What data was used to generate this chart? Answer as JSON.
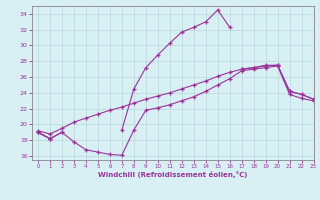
{
  "x": [
    0,
    1,
    2,
    3,
    4,
    5,
    6,
    7,
    8,
    9,
    10,
    11,
    12,
    13,
    14,
    15,
    16,
    17,
    18,
    19,
    20,
    21,
    22,
    23
  ],
  "line_peak": [
    19.0,
    18.2,
    19.0,
    null,
    null,
    null,
    null,
    19.3,
    24.5,
    27.2,
    28.8,
    30.3,
    31.7,
    32.3,
    33.0,
    34.5,
    32.3,
    null,
    null,
    null,
    null,
    null,
    null,
    null
  ],
  "line_upper": [
    19.0,
    18.2,
    null,
    null,
    null,
    null,
    null,
    null,
    null,
    null,
    null,
    null,
    null,
    null,
    null,
    null,
    null,
    27.0,
    27.2,
    27.5,
    27.5,
    24.2,
    23.8,
    23.2
  ],
  "line_lower": [
    19.0,
    18.2,
    19.0,
    17.8,
    16.8,
    16.5,
    16.2,
    16.1,
    19.3,
    21.8,
    22.1,
    22.5,
    23.0,
    23.5,
    24.2,
    25.0,
    25.8,
    26.8,
    27.0,
    27.2,
    27.4,
    23.8,
    23.3,
    23.0
  ],
  "line_diag_upper": [
    19.2,
    18.8,
    19.5,
    20.3,
    20.8,
    21.3,
    21.8,
    22.2,
    22.7,
    23.2,
    23.6,
    24.0,
    24.5,
    25.0,
    25.5,
    26.1,
    26.6,
    27.0,
    27.2,
    27.4,
    27.5,
    24.2,
    23.8,
    23.2
  ],
  "color": "#993399",
  "bg_color": "#d8eff4",
  "grid_color": "#b8d8dc",
  "xlabel": "Windchill (Refroidissement éolien,°C)",
  "ylim": [
    15.5,
    35
  ],
  "xlim": [
    -0.5,
    23
  ],
  "yticks": [
    16,
    18,
    20,
    22,
    24,
    26,
    28,
    30,
    32,
    34
  ],
  "xticks": [
    0,
    1,
    2,
    3,
    4,
    5,
    6,
    7,
    8,
    9,
    10,
    11,
    12,
    13,
    14,
    15,
    16,
    17,
    18,
    19,
    20,
    21,
    22,
    23
  ]
}
